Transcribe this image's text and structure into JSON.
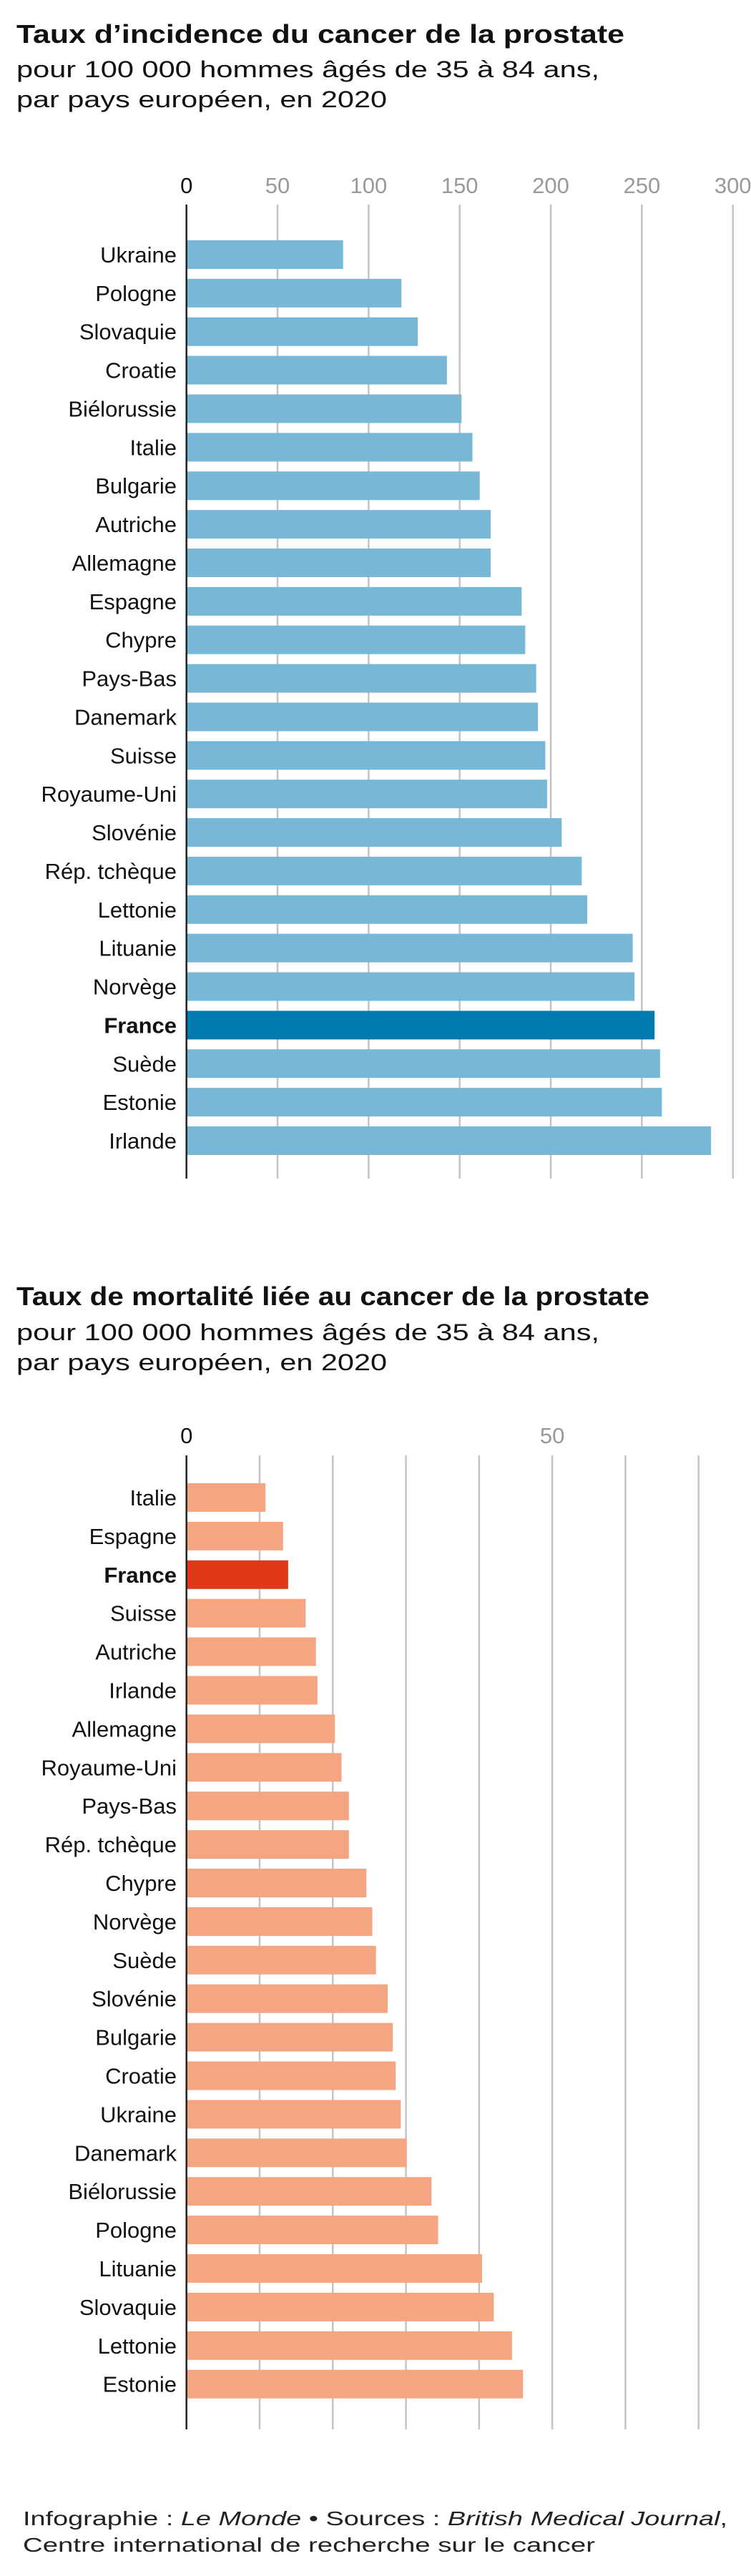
{
  "colors": {
    "incidence_bar": "#77b8d6",
    "incidence_highlight": "#007bb0",
    "mortality_bar": "#f4a582",
    "mortality_highlight": "#e3371a"
  },
  "chart_data": [
    {
      "type": "bar",
      "orientation": "horizontal",
      "title": "Taux d’incidence du cancer de la prostate",
      "subtitle": [
        "pour 100 000 hommes âgés de 35 à 84 ans,",
        "par pays européen, en 2020"
      ],
      "xlabel": "",
      "ylabel": "",
      "xlim": [
        0,
        300
      ],
      "ticks": [
        0,
        50,
        100,
        150,
        200,
        250,
        300
      ],
      "tick_labels": [
        "0",
        "50",
        "100",
        "150",
        "200",
        "250",
        "300"
      ],
      "grid": true,
      "highlight": "France",
      "categories": [
        "Ukraine",
        "Pologne",
        "Slovaquie",
        "Croatie",
        "Biélorussie",
        "Italie",
        "Bulgarie",
        "Autriche",
        "Allemagne",
        "Espagne",
        "Chypre",
        "Pays-Bas",
        "Danemark",
        "Suisse",
        "Royaume-Uni",
        "Slovénie",
        "Rép. tchèque",
        "Lettonie",
        "Lituanie",
        "Norvège",
        "France",
        "Suède",
        "Estonie",
        "Irlande"
      ],
      "values": [
        86,
        118,
        127,
        143,
        151,
        157,
        161,
        167,
        167,
        184,
        186,
        192,
        193,
        197,
        198,
        206,
        217,
        220,
        245,
        246,
        257,
        260,
        261,
        288
      ]
    },
    {
      "type": "bar",
      "orientation": "horizontal",
      "title": "Taux de mortalité liée au cancer de la prostate",
      "subtitle": [
        "pour 100 000 hommes âgés de 35 à 84 ans,",
        "par pays européen, en 2020"
      ],
      "xlabel": "",
      "ylabel": "",
      "xlim": [
        0,
        70
      ],
      "ticks": [
        0,
        10,
        20,
        30,
        40,
        50,
        60,
        70
      ],
      "tick_labels": [
        "0",
        "",
        "",
        "",
        "",
        "50",
        "",
        ""
      ],
      "grid": true,
      "highlight": "France",
      "categories": [
        "Italie",
        "Espagne",
        "France",
        "Suisse",
        "Autriche",
        "Irlande",
        "Allemagne",
        "Royaume-Uni",
        "Pays-Bas",
        "Rép. tchèque",
        "Chypre",
        "Norvège",
        "Suède",
        "Slovénie",
        "Bulgarie",
        "Croatie",
        "Ukraine",
        "Danemark",
        "Biélorussie",
        "Pologne",
        "Lituanie",
        "Slovaquie",
        "Lettonie",
        "Estonie"
      ],
      "values": [
        10.8,
        13.2,
        13.9,
        16.3,
        17.7,
        17.9,
        20.3,
        21.2,
        22.2,
        22.2,
        24.6,
        25.4,
        25.9,
        27.5,
        28.2,
        28.6,
        29.3,
        30.1,
        33.5,
        34.4,
        40.4,
        42.0,
        44.5,
        46.0
      ]
    }
  ],
  "footer": {
    "line1_prefix": "Infographie : ",
    "line1_outlet": "Le Monde",
    "line1_sep": " • Sources : ",
    "line1_source": "British Medical Journal",
    "line1_end": ",",
    "line2": "Centre international de recherche sur le cancer"
  }
}
